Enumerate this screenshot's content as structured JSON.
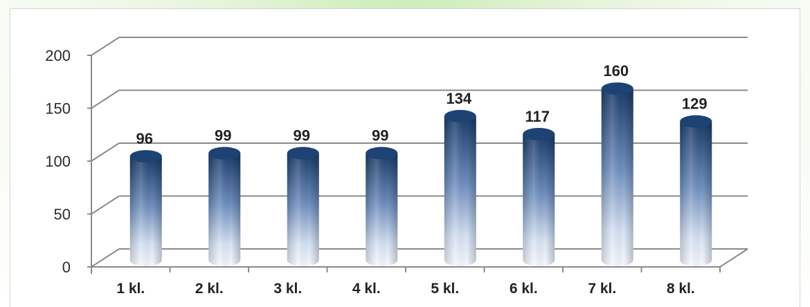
{
  "chart_data": {
    "type": "bar",
    "categories": [
      "1 kl.",
      "2 kl.",
      "3 kl.",
      "4 kl.",
      "5 kl.",
      "6 kl.",
      "7 kl.",
      "8 kl."
    ],
    "values": [
      96,
      99,
      99,
      99,
      134,
      117,
      160,
      129
    ],
    "ylim": [
      0,
      200
    ],
    "yticks": [
      "0",
      "50",
      "100",
      "150",
      "200"
    ],
    "grid": true,
    "style": "3d-cylinder",
    "colors": {
      "bar_top": "#1b3f6e",
      "bar_bottom": "#f4f8ff",
      "grid": "#8a8a8a"
    }
  }
}
